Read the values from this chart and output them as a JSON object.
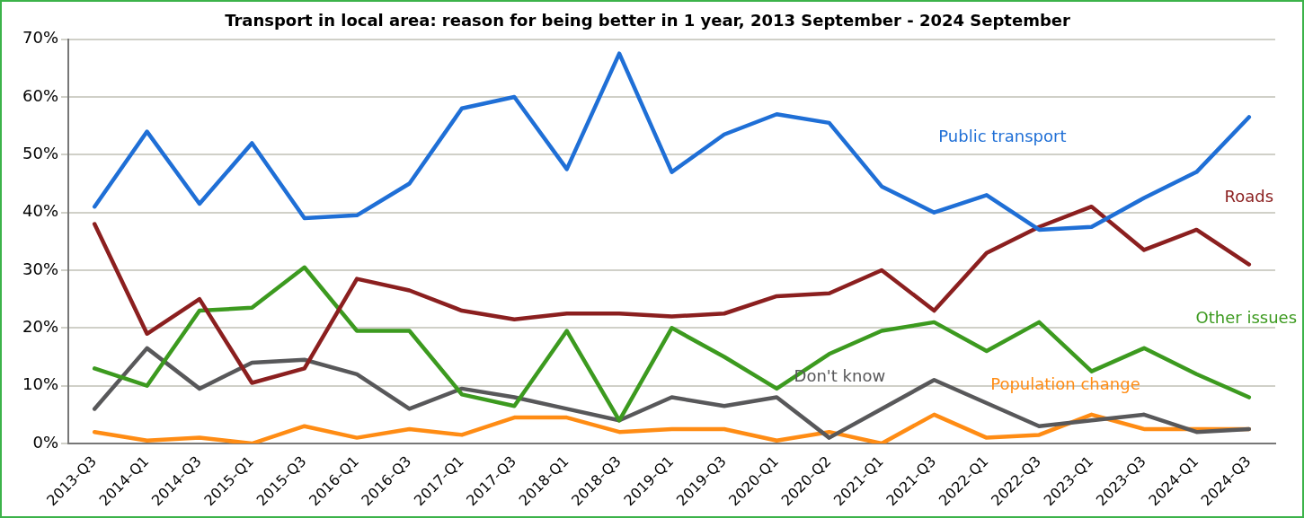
{
  "chart_data": {
    "type": "line",
    "title": "Transport in local area: reason for being better in 1 year, 2013 September - 2024 September",
    "categories": [
      "2013-Q3",
      "2014-Q1",
      "2014-Q3",
      "2015-Q1",
      "2015-Q3",
      "2016-Q1",
      "2016-Q3",
      "2017-Q1",
      "2017-Q3",
      "2018-Q1",
      "2018-Q3",
      "2019-Q1",
      "2019-Q3",
      "2020-Q1",
      "2020-Q2",
      "2021-Q1",
      "2021-Q3",
      "2022-Q1",
      "2022-Q3",
      "2023-Q1",
      "2023-Q3",
      "2024-Q1",
      "2024-Q3"
    ],
    "series": [
      {
        "name": "Public transport",
        "color": "#1f6fd6",
        "values": [
          41,
          54,
          41.5,
          52,
          39,
          39.5,
          45,
          58,
          60,
          47.5,
          67.5,
          47,
          53.5,
          57,
          55.5,
          44.5,
          40,
          43,
          37,
          37.5,
          42.5,
          47,
          56.5
        ]
      },
      {
        "name": "Roads",
        "color": "#8b1f1f",
        "values": [
          38,
          19,
          25,
          10.5,
          13,
          28.5,
          26.5,
          23,
          21.5,
          22.5,
          22.5,
          22,
          22.5,
          25.5,
          26,
          30,
          23,
          33,
          37.5,
          41,
          33.5,
          37,
          31
        ]
      },
      {
        "name": "Other issues",
        "color": "#3c9a1f",
        "values": [
          13,
          10,
          23,
          23.5,
          30.5,
          19.5,
          19.5,
          8.5,
          6.5,
          19.5,
          4,
          20,
          15,
          9.5,
          15.5,
          19.5,
          21,
          16,
          21,
          12.5,
          16.5,
          12,
          8
        ]
      },
      {
        "name": "Don't know",
        "color": "#58585a",
        "values": [
          6,
          16.5,
          9.5,
          14,
          14.5,
          12,
          6,
          9.5,
          8,
          6,
          4,
          8,
          6.5,
          8,
          1,
          6,
          11,
          7,
          3,
          4,
          5,
          2,
          2.5
        ]
      },
      {
        "name": "Population change",
        "color": "#ff8c14",
        "values": [
          2,
          0.5,
          1,
          0,
          3,
          1,
          2.5,
          1.5,
          4.5,
          4.5,
          2,
          2.5,
          2.5,
          0.5,
          2,
          0,
          5,
          1,
          1.5,
          5,
          2.5,
          2.5,
          2.5
        ]
      }
    ],
    "ylim": [
      0,
      70
    ],
    "yticks": [
      {
        "value": 0,
        "label": "0%"
      },
      {
        "value": 10,
        "label": "10%"
      },
      {
        "value": 20,
        "label": "20%"
      },
      {
        "value": 30,
        "label": "30%"
      },
      {
        "value": 40,
        "label": "40%"
      },
      {
        "value": 50,
        "label": "50%"
      },
      {
        "value": 60,
        "label": "60%"
      },
      {
        "value": 70,
        "label": "70%"
      }
    ],
    "grid": "y",
    "legend": false,
    "marker": "none",
    "line_style": "solid"
  }
}
